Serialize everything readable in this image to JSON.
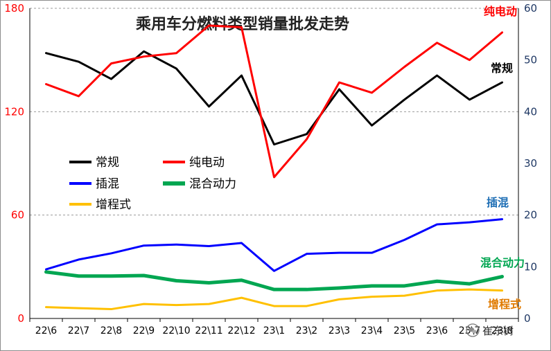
{
  "chart_data": {
    "type": "line",
    "title": "乘用车分燃料类型销量批发走势",
    "categories": [
      "22\\6",
      "22\\7",
      "22\\8",
      "22\\9",
      "22\\10",
      "22\\11",
      "22\\12",
      "23\\1",
      "23\\2",
      "23\\3",
      "23\\4",
      "23\\5",
      "23\\6",
      "23\\7",
      "23\\8"
    ],
    "y_left": {
      "min": 0,
      "max": 180,
      "ticks": [
        0,
        60,
        120,
        180
      ],
      "color": "#ff0000"
    },
    "y_right": {
      "min": 0,
      "max": 60,
      "ticks": [
        0,
        10,
        20,
        30,
        40,
        50,
        60
      ],
      "color": "#1f3864"
    },
    "grid": true,
    "series": [
      {
        "name": "常规",
        "axis": "left",
        "color": "#000000",
        "width": 3,
        "values": [
          154,
          149,
          139,
          155,
          145,
          123,
          141,
          101,
          107,
          133,
          112,
          127,
          141,
          127,
          137
        ]
      },
      {
        "name": "纯电动",
        "axis": "left",
        "color": "#ff0000",
        "width": 3,
        "values": [
          136,
          129,
          148,
          152,
          154,
          170,
          169,
          82,
          104,
          137,
          131,
          146,
          160,
          150,
          166
        ]
      },
      {
        "name": "插混",
        "axis": "right",
        "color": "#0000ff",
        "width": 3,
        "values": [
          9.5,
          11.4,
          12.6,
          14.1,
          14.3,
          14.0,
          14.6,
          9.2,
          12.5,
          12.7,
          12.7,
          15.2,
          18.2,
          18.6,
          19.2
        ]
      },
      {
        "name": "混合动力",
        "axis": "right",
        "color": "#00a651",
        "width": 5,
        "values": [
          9.0,
          8.2,
          8.2,
          8.3,
          7.3,
          6.9,
          7.4,
          5.6,
          5.6,
          5.9,
          6.3,
          6.3,
          7.2,
          6.7,
          8.1
        ]
      },
      {
        "name": "增程式",
        "axis": "right",
        "color": "#ffc000",
        "width": 3,
        "values": [
          2.2,
          2.0,
          1.8,
          2.8,
          2.6,
          2.8,
          4.0,
          2.4,
          2.4,
          3.7,
          4.2,
          4.4,
          5.4,
          5.6,
          5.4
        ]
      }
    ],
    "legend": {
      "position": "upper-left-inside",
      "entries": [
        "常规",
        "纯电动",
        "插混",
        "混合动力",
        "增程式"
      ]
    },
    "annotations": [
      {
        "text": "纯电动",
        "color": "#ff0000"
      },
      {
        "text": "常规",
        "color": "#000000"
      },
      {
        "text": "插混",
        "color": "#1f6fb5"
      },
      {
        "text": "混合动力",
        "color": "#00a651"
      },
      {
        "text": "增程式",
        "color": "#e07b00"
      }
    ]
  },
  "watermark": {
    "text": "崔东树",
    "icon": "wechat-icon"
  }
}
